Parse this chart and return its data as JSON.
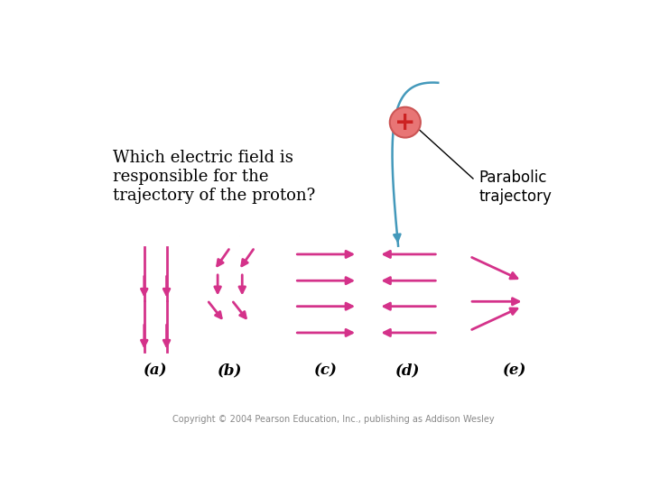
{
  "background_color": "#ffffff",
  "title_text": "Which electric field is\nresponsible for the\ntrajectory of the proton?",
  "title_fontsize": 13,
  "arrow_color": "#d4328a",
  "traj_color": "#4499bb",
  "proton_fill": "#e87575",
  "proton_edge": "#cc5555",
  "label_fontsize": 12,
  "copyright": "Copyright © 2004 Pearson Education, Inc., publishing as Addison Wesley",
  "parabolic_label": "Parabolic\ntrajectory",
  "labels": [
    "(a)",
    "(b)",
    "(c)",
    "(d)",
    "(e)"
  ]
}
